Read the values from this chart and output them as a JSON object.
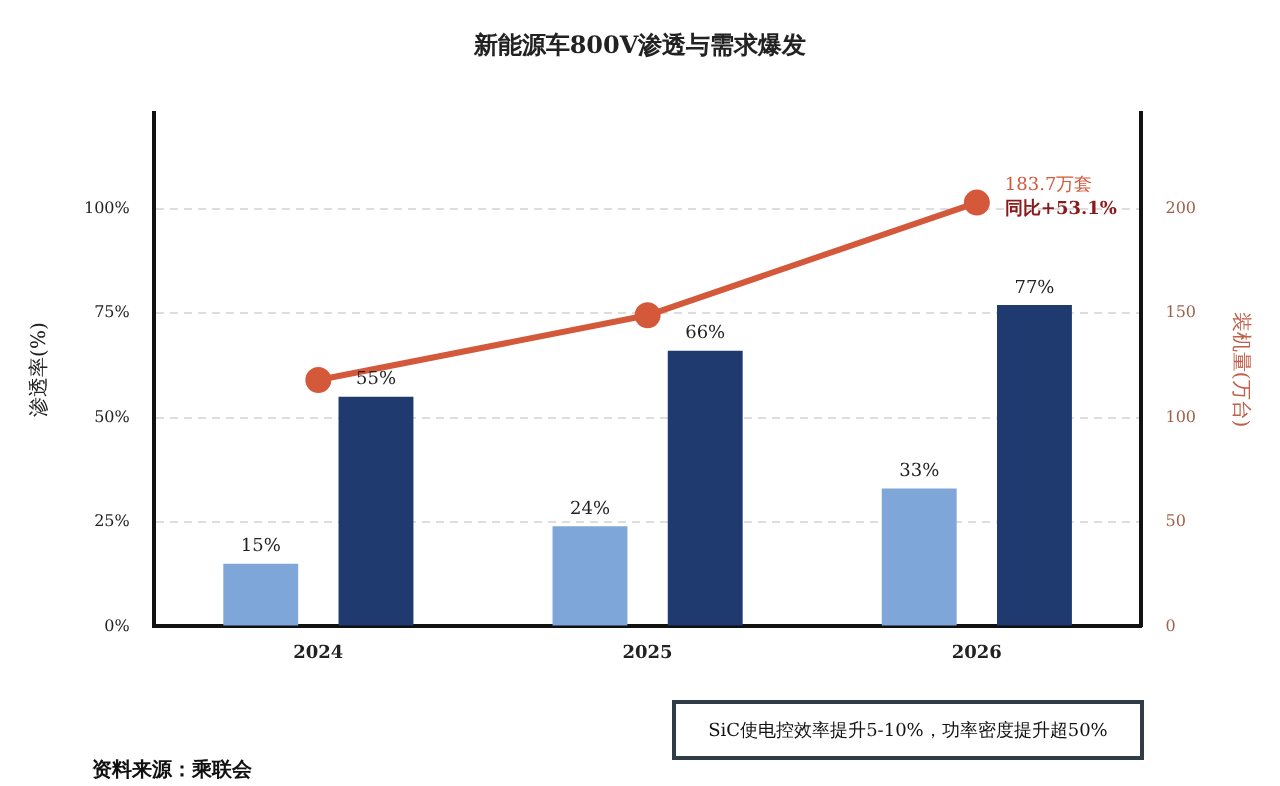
{
  "chart_data": {
    "type": "bar",
    "title": "新能源车800V渗透与需求爆发",
    "ylabel": "渗透率(%)",
    "y2label": "装机量(万台)",
    "categories": [
      "2024",
      "2025",
      "2026"
    ],
    "series": [
      {
        "color": "#7fa6d8",
        "values": [
          15,
          24,
          33
        ],
        "value_labels": [
          "15%",
          "24%",
          "33%"
        ]
      },
      {
        "color": "#1e3a6e",
        "values": [
          55,
          66,
          77
        ],
        "value_labels": [
          "55%",
          "66%",
          "77%"
        ]
      },
      {
        "type": "line",
        "axis": "y2",
        "color": "#d4583a",
        "values": [
          118,
          149,
          203
        ]
      }
    ],
    "ylim": [
      0,
      123
    ],
    "yticks": [
      {
        "value": 0,
        "label": "0%"
      },
      {
        "value": 25,
        "label": "25%"
      },
      {
        "value": 50,
        "label": "50%"
      },
      {
        "value": 75,
        "label": "75%"
      },
      {
        "value": 100,
        "label": "100%"
      }
    ],
    "y2lim": [
      0,
      246
    ],
    "y2ticks": [
      0,
      50,
      100,
      150,
      200
    ],
    "grid": "y",
    "legend": false,
    "marker": "circle",
    "annotations": [
      "183.7万套",
      "同比+53.1%",
      "SiC使电控效率提升5-10%，功率密度提升超50%",
      "资料来源：乘联会"
    ]
  }
}
